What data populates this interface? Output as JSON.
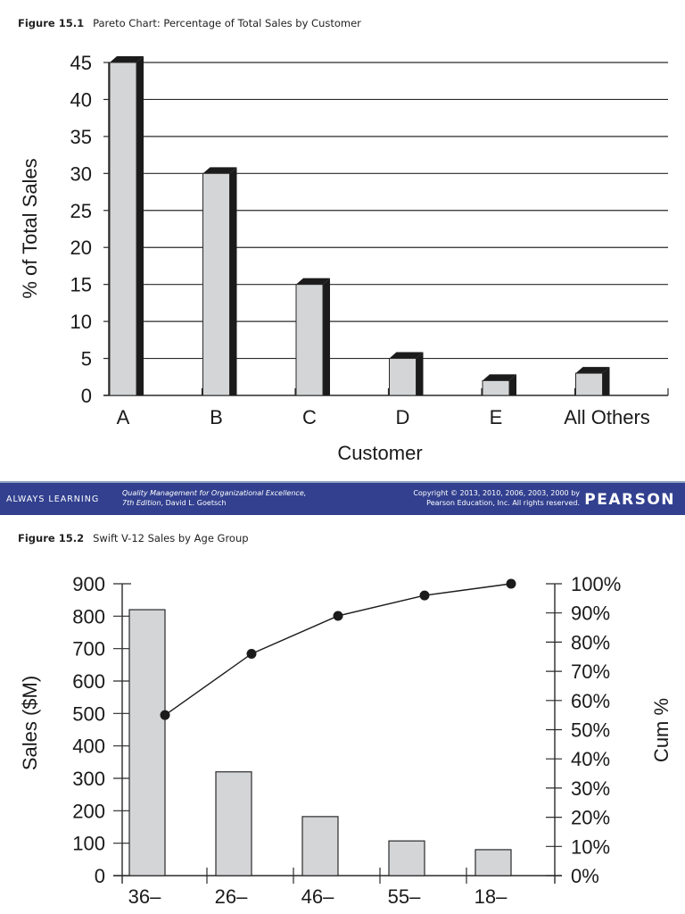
{
  "figure1": {
    "number": "Figure 15.1",
    "title": "Pareto Chart: Percentage of Total Sales by Customer"
  },
  "figure2": {
    "number": "Figure 15.2",
    "title": "Swift V-12 Sales by Age Group"
  },
  "footer": {
    "tagline": "ALWAYS LEARNING",
    "book_title": "Quality Management for Organizational Excellence,",
    "book_edition": "7th Edition",
    "book_author": ", David L. Goetsch",
    "copyright_line1": "Copyright © 2013, 2010, 2006, 2003, 2000 by",
    "copyright_line2": "Pearson Education, Inc. All rights reserved.",
    "logo": "PEARSON",
    "background_color": "#32408f"
  },
  "chart_data": [
    {
      "type": "bar",
      "title": "Pareto Chart: Percentage of Total Sales by Customer",
      "xlabel": "Customer",
      "ylabel": "% of Total Sales",
      "categories": [
        "A",
        "B",
        "C",
        "D",
        "E",
        "All Others"
      ],
      "values": [
        45,
        30,
        15,
        5,
        2,
        3
      ],
      "ylim": [
        0,
        45
      ],
      "yticks": [
        0,
        5,
        10,
        15,
        20,
        25,
        30,
        35,
        40,
        45
      ],
      "grid": true,
      "style": "3d-bars-light-gray-with-black-side",
      "legend": null
    },
    {
      "type": "bar+line",
      "title": "Swift V-12 Sales by Age Group",
      "xlabel": "",
      "ylabel": "Sales ($M)",
      "y2label": "Cum %",
      "categories": [
        "36–",
        "26–",
        "46–",
        "55–",
        "18–"
      ],
      "series": [
        {
          "name": "Sales ($M)",
          "type": "bar",
          "axis": "left",
          "values": [
            820,
            320,
            182,
            107,
            80
          ]
        },
        {
          "name": "Cum %",
          "type": "line",
          "axis": "right",
          "values": [
            55,
            76,
            89,
            96,
            100
          ]
        }
      ],
      "ylim": [
        0,
        900
      ],
      "yticks": [
        0,
        100,
        200,
        300,
        400,
        500,
        600,
        700,
        800,
        900
      ],
      "y2lim": [
        0,
        100
      ],
      "y2ticks": [
        "0%",
        "10%",
        "20%",
        "30%",
        "40%",
        "50%",
        "60%",
        "70%",
        "80%",
        "90%",
        "100%"
      ],
      "grid": false,
      "legend": null
    }
  ]
}
